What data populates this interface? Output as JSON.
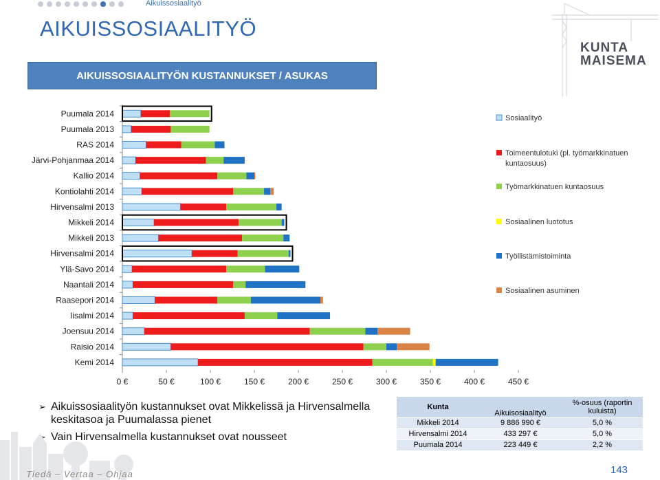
{
  "header": {
    "nav_dots": 10,
    "active_dot": 7,
    "breadcrumb": "Aikuissosiaalityö",
    "page_title": "AIKUISSOSIAALITYÖ",
    "logo_line1": "KUNTA",
    "logo_line2": "MAISEMA"
  },
  "chart_title_box": "AIKUISSOSIAALITYÖN KUSTANNUKSET / ASUKAS",
  "colors": {
    "Sosiaalityö": "#bfe0f4",
    "Toimeentulotuki": "#ee1c1c",
    "Työmarkkinatuki": "#8fd14f",
    "Sosiaalinen luototus": "#ffff00",
    "Työllistämistoiminta": "#1f72c4",
    "Sosiaalinen asuminen": "#d98446",
    "highlight": "#000000",
    "title_bg": "#4f81bd"
  },
  "chart_data": {
    "type": "bar",
    "orientation": "horizontal",
    "stacked": true,
    "categories": [
      "Puumala 2014",
      "Puumala 2013",
      "RAS 2014",
      "Järvi-Pohjanmaa 2014",
      "Kallio 2014",
      "Kontiolahti 2014",
      "Hirvensalmi 2013",
      "Mikkeli 2014",
      "Mikkeli 2013",
      "Hirvensalmi 2014",
      "Ylä-Savo 2014",
      "Naantali 2014",
      "Raasepori 2014",
      "Iisalmi 2014",
      "Joensuu 2014",
      "Raisio 2014",
      "Kemi 2014"
    ],
    "series": [
      {
        "name": "Sosiaalityö",
        "values": [
          21,
          10,
          27,
          15,
          20,
          22,
          66,
          36,
          41,
          79,
          11,
          12,
          37,
          12,
          25,
          55,
          86
        ]
      },
      {
        "name": "Toimeentulotuki (pl. työmarkkinatuen kuntaosuus)",
        "values": [
          33,
          45,
          40,
          80,
          88,
          104,
          52,
          96,
          95,
          52,
          107,
          114,
          71,
          127,
          188,
          219,
          198
        ]
      },
      {
        "name": "Työmarkkinatuen kuntaosuus",
        "values": [
          45,
          44,
          38,
          20,
          33,
          35,
          57,
          49,
          47,
          58,
          44,
          14,
          38,
          37,
          63,
          26,
          69
        ]
      },
      {
        "name": "Sosiaalinen luototus",
        "values": [
          0,
          0,
          0,
          0,
          0,
          0,
          0,
          0,
          0,
          0,
          0,
          0,
          0,
          0,
          0,
          0,
          3
        ]
      },
      {
        "name": "Työllistämistoiminta",
        "values": [
          0,
          0,
          11,
          24,
          9,
          7,
          6,
          3,
          7,
          2,
          39,
          68,
          79,
          60,
          14,
          12,
          71
        ]
      },
      {
        "name": "Sosiaalinen asuminen",
        "values": [
          0,
          0,
          0,
          0,
          1,
          4,
          0,
          0,
          0,
          0,
          0,
          0,
          3,
          0,
          37,
          37,
          0
        ]
      }
    ],
    "highlighted": [
      "Puumala 2014",
      "Mikkeli 2014",
      "Hirvensalmi 2014"
    ],
    "xlim": [
      0,
      450
    ],
    "xticks": [
      "0 €",
      "50 €",
      "100 €",
      "150 €",
      "200 €",
      "250 €",
      "300 €",
      "350 €",
      "400 €",
      "450 €"
    ],
    "legend_position": "right",
    "legend": [
      "Sosiaalityö",
      "Toimeentulotuki (pl. työmarkkinatuen kuntaosuus)",
      "Työmarkkinatuen kuntaosuus",
      "Sosiaalinen luototus",
      "Työllistämistoiminta",
      "Sosiaalinen asuminen"
    ]
  },
  "bullets": [
    "Aikuissosiaalityön kustannukset ovat Mikkelissä ja Hirvensalmella keskitasoa ja Puumalassa pienet",
    "Vain Hirvensalmella kustannukset ovat nousseet"
  ],
  "table": {
    "headers": [
      "Kunta",
      "Aikuisosiaalityö",
      "%-osuus (raportin kuluista)"
    ],
    "rows": [
      [
        "Mikkeli 2014",
        "9 886 990 €",
        "5,0 %"
      ],
      [
        "Hirvensalmi 2014",
        "433 297 €",
        "5,0 %"
      ],
      [
        "Puumala 2014",
        "223 449 €",
        "2,2 %"
      ]
    ]
  },
  "footer": {
    "tagline": "Tiedä – Vertaa – Ohjaa",
    "page_number": "143"
  }
}
